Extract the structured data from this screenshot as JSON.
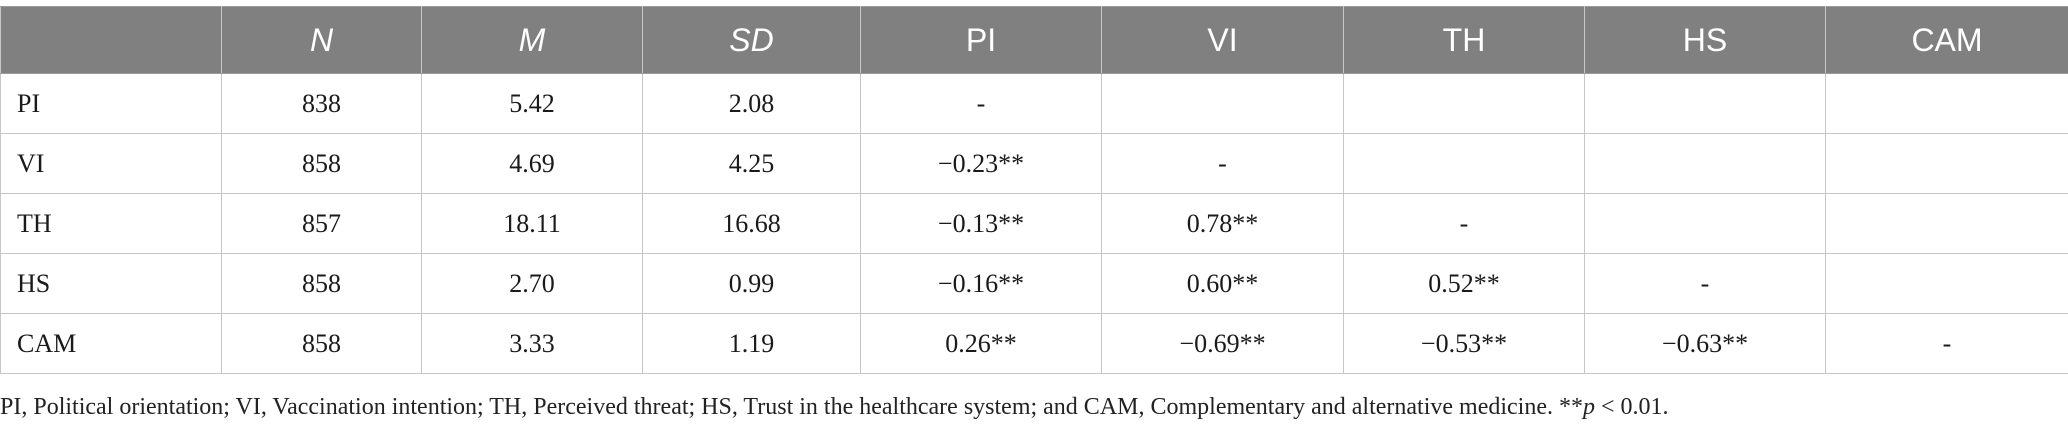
{
  "table": {
    "headers": [
      {
        "label": "",
        "italic": false
      },
      {
        "label": "N",
        "italic": true
      },
      {
        "label": "M",
        "italic": true
      },
      {
        "label": "SD",
        "italic": true
      },
      {
        "label": "PI",
        "italic": false
      },
      {
        "label": "VI",
        "italic": false
      },
      {
        "label": "TH",
        "italic": false
      },
      {
        "label": "HS",
        "italic": false
      },
      {
        "label": "CAM",
        "italic": false
      }
    ],
    "rows": [
      [
        "PI",
        "838",
        "5.42",
        "2.08",
        "-",
        "",
        "",
        "",
        ""
      ],
      [
        "VI",
        "858",
        "4.69",
        "4.25",
        "−0.23**",
        "-",
        "",
        "",
        ""
      ],
      [
        "TH",
        "857",
        "18.11",
        "16.68",
        "−0.13**",
        "0.78**",
        "-",
        "",
        ""
      ],
      [
        "HS",
        "858",
        "2.70",
        "0.99",
        "−0.16**",
        "0.60**",
        "0.52**",
        "-",
        ""
      ],
      [
        "CAM",
        "858",
        "3.33",
        "1.19",
        "0.26**",
        "−0.69**",
        "−0.53**",
        "−0.63**",
        "-"
      ]
    ]
  },
  "note": {
    "text_main": "PI, Political orientation; VI, Vaccination intention; TH, Perceived threat; HS, Trust in the healthcare system; and CAM, Complementary and alternative medicine. **",
    "p_symbol": "p",
    "text_end": " < 0.01."
  },
  "colors": {
    "header_bg": "#808080",
    "header_text": "#ffffff",
    "grid": "#c6c6c6"
  }
}
